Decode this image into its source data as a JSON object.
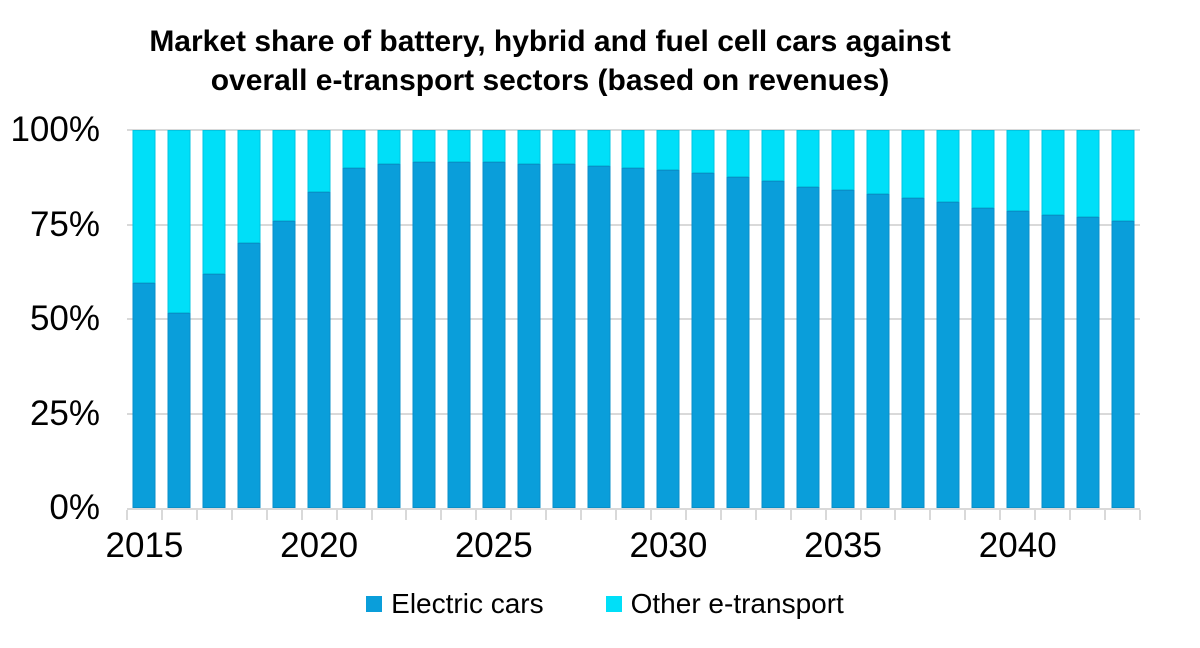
{
  "title": {
    "line1": "Market share of battery, hybrid and fuel cell cars against",
    "line2": "overall e-transport sectors (based on revenues)"
  },
  "colors": {
    "electric_cars": "#0a9eda",
    "other_e_transport": "#00dff8",
    "gridline": "#d9d9d9",
    "text": "#000000"
  },
  "chart_data": {
    "type": "bar",
    "stacked": true,
    "stacked_to_100_percent": true,
    "title": "Market share of battery, hybrid and fuel cell cars against overall e-transport sectors (based on revenues)",
    "categories": [
      2015,
      2016,
      2017,
      2018,
      2019,
      2020,
      2021,
      2022,
      2023,
      2024,
      2025,
      2026,
      2027,
      2028,
      2029,
      2030,
      2031,
      2032,
      2033,
      2034,
      2035,
      2036,
      2037,
      2038,
      2039,
      2040,
      2041,
      2042,
      2043
    ],
    "series": [
      {
        "name": "Electric cars",
        "color": "#0a9eda",
        "values": [
          59.5,
          51.5,
          62,
          70,
          76,
          83.5,
          90,
          91,
          91.5,
          91.5,
          91.5,
          91,
          91,
          90.5,
          90,
          89.5,
          88.5,
          87.5,
          86.5,
          85,
          84,
          83,
          82,
          81,
          79.5,
          78.5,
          77.5,
          77,
          76
        ]
      },
      {
        "name": "Other e-transport",
        "color": "#00dff8",
        "values": [
          40.5,
          48.5,
          38,
          30,
          24,
          16.5,
          10,
          9,
          8.5,
          8.5,
          8.5,
          9,
          9,
          9.5,
          10,
          10.5,
          11.5,
          12.5,
          13.5,
          15,
          16,
          17,
          18,
          19,
          20.5,
          21.5,
          22.5,
          23,
          24
        ]
      }
    ],
    "ylim": [
      0,
      100
    ],
    "ytick_labels": [
      "0%",
      "25%",
      "50%",
      "75%",
      "100%"
    ],
    "xtick_labels_shown": [
      "2015",
      "2020",
      "2025",
      "2030",
      "2035",
      "2040"
    ],
    "grid": "horizontal",
    "legend_position": "bottom-center"
  }
}
